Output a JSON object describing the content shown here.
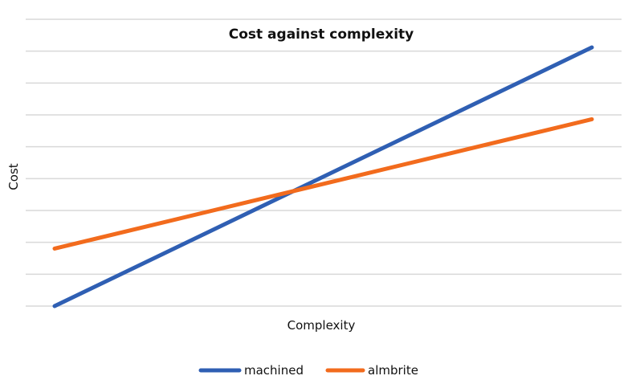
{
  "chart_data": {
    "type": "line",
    "title": "Cost against complexity",
    "xlabel": "Complexity",
    "ylabel": "Cost",
    "x": [
      0,
      1
    ],
    "xlim": [
      0,
      1
    ],
    "ylim": [
      0,
      9
    ],
    "grid": true,
    "gridline_count": 10,
    "legend": "bottom",
    "series": [
      {
        "name": "machined",
        "color": "#2f5fb3",
        "values": [
          0,
          9
        ]
      },
      {
        "name": "almbrite",
        "color": "#f26b1d",
        "values": [
          2,
          6.5
        ]
      }
    ]
  }
}
